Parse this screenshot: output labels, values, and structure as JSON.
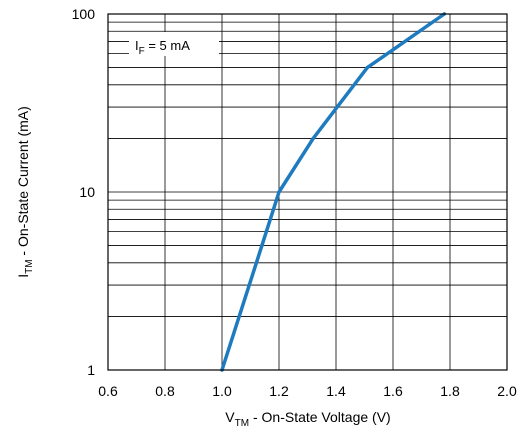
{
  "chart_data": {
    "type": "line",
    "x_scale": "linear",
    "y_scale": "log",
    "xlim": [
      0.6,
      2.0
    ],
    "ylim": [
      1,
      100
    ],
    "grid": true,
    "x_ticks": [
      0.6,
      0.8,
      1.0,
      1.2,
      1.4,
      1.6,
      1.8,
      2.0
    ],
    "x_tick_labels": [
      "0.6",
      "0.8",
      "1.0",
      "1.2",
      "1.4",
      "1.6",
      "1.8",
      "2.0"
    ],
    "y_ticks": [
      1,
      10,
      100
    ],
    "y_tick_labels": [
      "1",
      "10",
      "100"
    ],
    "xlabel": {
      "main": "V",
      "sub": "TM",
      "rest": " - On-State Voltage (V)"
    },
    "ylabel": {
      "main": "I",
      "sub": "TM",
      "rest": " - On-State Current (mA)"
    },
    "annotation": {
      "main": "I",
      "sub": "F",
      "rest": " = 5 mA"
    },
    "series": [
      {
        "color": "#1f7bbf",
        "x": [
          1.0,
          1.14,
          1.2,
          1.32,
          1.51,
          1.78
        ],
        "y": [
          1,
          5,
          10,
          20,
          50,
          100
        ]
      }
    ]
  }
}
